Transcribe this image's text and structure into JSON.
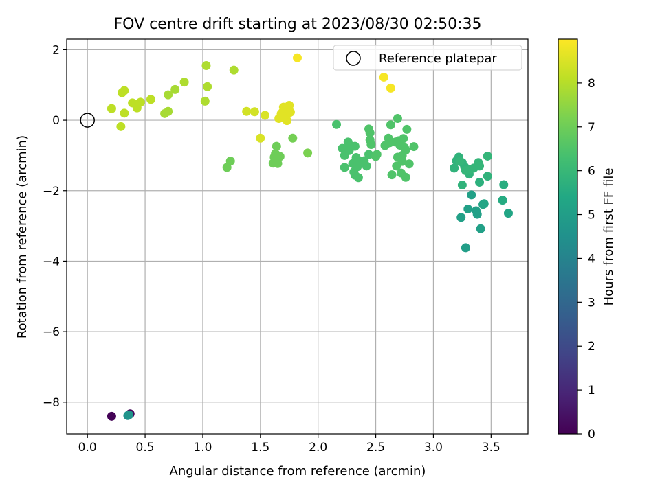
{
  "chart_data": {
    "type": "scatter",
    "title": "FOV centre drift starting at 2023/08/30 02:50:35",
    "xlabel": "Angular distance from reference (arcmin)",
    "ylabel": "Rotation from reference (arcmin)",
    "xlim": [
      -0.18,
      3.82
    ],
    "ylim": [
      -8.9,
      2.3
    ],
    "xticks": [
      0.0,
      0.5,
      1.0,
      1.5,
      2.0,
      2.5,
      3.0,
      3.5
    ],
    "xtick_labels": [
      "0.0",
      "0.5",
      "1.0",
      "1.5",
      "2.0",
      "2.5",
      "3.0",
      "3.5"
    ],
    "yticks": [
      2,
      0,
      -2,
      -4,
      -6,
      -8
    ],
    "ytick_labels": [
      "2",
      "0",
      "−2",
      "−4",
      "−6",
      "−8"
    ],
    "grid": true,
    "legend": {
      "position": "top-right",
      "entries": [
        "Reference platepar"
      ]
    },
    "reference_point": {
      "x": 0,
      "y": 0
    },
    "colorbar": {
      "label": "Hours from first FF file",
      "colormap": "viridis",
      "range": [
        0,
        9.0
      ],
      "ticks": [
        0,
        1,
        2,
        3,
        4,
        5,
        6,
        7,
        8
      ],
      "tick_labels": [
        "0",
        "1",
        "2",
        "3",
        "4",
        "5",
        "6",
        "7",
        "8"
      ]
    },
    "points": [
      {
        "x": 0.21,
        "y": -8.4,
        "h": 0.05
      },
      {
        "x": 0.37,
        "y": -8.33,
        "h": 0.15
      },
      {
        "x": 0.35,
        "y": -8.38,
        "h": 4.4
      },
      {
        "x": 0.36,
        "y": -8.36,
        "h": 4.6
      },
      {
        "x": 3.28,
        "y": -3.62,
        "h": 5.0
      },
      {
        "x": 3.24,
        "y": -2.76,
        "h": 5.1
      },
      {
        "x": 3.3,
        "y": -2.52,
        "h": 5.1
      },
      {
        "x": 3.33,
        "y": -2.12,
        "h": 5.1
      },
      {
        "x": 3.37,
        "y": -2.57,
        "h": 5.1
      },
      {
        "x": 3.38,
        "y": -2.67,
        "h": 5.1
      },
      {
        "x": 3.41,
        "y": -3.08,
        "h": 5.1
      },
      {
        "x": 3.43,
        "y": -2.39,
        "h": 5.2
      },
      {
        "x": 3.44,
        "y": -2.37,
        "h": 5.3
      },
      {
        "x": 3.65,
        "y": -2.64,
        "h": 5.3
      },
      {
        "x": 3.6,
        "y": -2.27,
        "h": 5.5
      },
      {
        "x": 3.61,
        "y": -1.83,
        "h": 5.6
      },
      {
        "x": 3.4,
        "y": -1.76,
        "h": 5.7
      },
      {
        "x": 3.25,
        "y": -1.84,
        "h": 5.8
      },
      {
        "x": 3.47,
        "y": -1.59,
        "h": 5.8
      },
      {
        "x": 3.31,
        "y": -1.53,
        "h": 5.8
      },
      {
        "x": 3.18,
        "y": -1.36,
        "h": 5.8
      },
      {
        "x": 3.2,
        "y": -1.15,
        "h": 5.8
      },
      {
        "x": 3.22,
        "y": -1.05,
        "h": 5.8
      },
      {
        "x": 3.25,
        "y": -1.2,
        "h": 5.8
      },
      {
        "x": 3.27,
        "y": -1.32,
        "h": 5.8
      },
      {
        "x": 3.28,
        "y": -1.43,
        "h": 5.9
      },
      {
        "x": 3.32,
        "y": -1.4,
        "h": 5.9
      },
      {
        "x": 3.35,
        "y": -1.36,
        "h": 5.9
      },
      {
        "x": 3.39,
        "y": -1.2,
        "h": 5.9
      },
      {
        "x": 3.4,
        "y": -1.3,
        "h": 5.9
      },
      {
        "x": 3.47,
        "y": -1.02,
        "h": 5.9
      },
      {
        "x": 3.23,
        "y": -1.17,
        "h": 5.9
      },
      {
        "x": 2.16,
        "y": -0.12,
        "h": 6.4
      },
      {
        "x": 2.21,
        "y": -0.8,
        "h": 6.4
      },
      {
        "x": 2.23,
        "y": -1.0,
        "h": 6.4
      },
      {
        "x": 2.23,
        "y": -1.34,
        "h": 6.4
      },
      {
        "x": 2.26,
        "y": -0.62,
        "h": 6.4
      },
      {
        "x": 2.27,
        "y": -0.86,
        "h": 6.4
      },
      {
        "x": 2.28,
        "y": -0.73,
        "h": 6.4
      },
      {
        "x": 2.3,
        "y": -1.23,
        "h": 6.4
      },
      {
        "x": 2.31,
        "y": -1.47,
        "h": 6.4
      },
      {
        "x": 2.32,
        "y": -1.56,
        "h": 6.4
      },
      {
        "x": 2.32,
        "y": -0.74,
        "h": 6.4
      },
      {
        "x": 2.33,
        "y": -1.06,
        "h": 6.4
      },
      {
        "x": 2.34,
        "y": -1.32,
        "h": 6.4
      },
      {
        "x": 2.35,
        "y": -1.63,
        "h": 6.4
      },
      {
        "x": 2.36,
        "y": -1.16,
        "h": 6.4
      },
      {
        "x": 2.4,
        "y": -1.15,
        "h": 6.4
      },
      {
        "x": 2.42,
        "y": -1.3,
        "h": 6.4
      },
      {
        "x": 2.44,
        "y": -0.97,
        "h": 6.4
      },
      {
        "x": 2.44,
        "y": -0.25,
        "h": 6.5
      },
      {
        "x": 2.45,
        "y": -0.36,
        "h": 6.5
      },
      {
        "x": 2.45,
        "y": -0.56,
        "h": 6.5
      },
      {
        "x": 2.46,
        "y": -0.69,
        "h": 6.5
      },
      {
        "x": 2.5,
        "y": -1.03,
        "h": 6.5
      },
      {
        "x": 2.51,
        "y": -0.97,
        "h": 6.5
      },
      {
        "x": 2.58,
        "y": -0.72,
        "h": 6.5
      },
      {
        "x": 2.61,
        "y": -0.51,
        "h": 6.5
      },
      {
        "x": 2.62,
        "y": -0.64,
        "h": 6.5
      },
      {
        "x": 2.63,
        "y": -0.13,
        "h": 6.5
      },
      {
        "x": 2.64,
        "y": -1.55,
        "h": 6.5
      },
      {
        "x": 2.67,
        "y": -0.62,
        "h": 6.5
      },
      {
        "x": 2.68,
        "y": -1.3,
        "h": 6.5
      },
      {
        "x": 2.69,
        "y": 0.05,
        "h": 6.5
      },
      {
        "x": 2.69,
        "y": -1.05,
        "h": 6.5
      },
      {
        "x": 2.7,
        "y": -0.58,
        "h": 6.5
      },
      {
        "x": 2.71,
        "y": -0.71,
        "h": 6.5
      },
      {
        "x": 2.72,
        "y": -1.5,
        "h": 6.5
      },
      {
        "x": 2.73,
        "y": -1.17,
        "h": 6.5
      },
      {
        "x": 2.74,
        "y": -0.52,
        "h": 6.5
      },
      {
        "x": 2.75,
        "y": -0.78,
        "h": 6.5
      },
      {
        "x": 2.76,
        "y": -0.85,
        "h": 6.5
      },
      {
        "x": 2.76,
        "y": -1.62,
        "h": 6.5
      },
      {
        "x": 2.77,
        "y": -0.26,
        "h": 6.5
      },
      {
        "x": 2.79,
        "y": -1.24,
        "h": 6.5
      },
      {
        "x": 2.83,
        "y": -0.75,
        "h": 6.5
      },
      {
        "x": 2.73,
        "y": -1.0,
        "h": 6.5
      },
      {
        "x": 1.21,
        "y": -1.34,
        "h": 7.0
      },
      {
        "x": 1.24,
        "y": -1.16,
        "h": 7.0
      },
      {
        "x": 1.61,
        "y": -1.22,
        "h": 7.0
      },
      {
        "x": 1.62,
        "y": -1.05,
        "h": 7.0
      },
      {
        "x": 1.63,
        "y": -0.95,
        "h": 7.0
      },
      {
        "x": 1.64,
        "y": -0.74,
        "h": 7.0
      },
      {
        "x": 1.65,
        "y": -1.23,
        "h": 7.0
      },
      {
        "x": 1.67,
        "y": -1.03,
        "h": 7.0
      },
      {
        "x": 1.78,
        "y": -0.51,
        "h": 7.1
      },
      {
        "x": 1.91,
        "y": -0.93,
        "h": 7.2
      },
      {
        "x": 0.67,
        "y": 0.19,
        "h": 7.8
      },
      {
        "x": 0.7,
        "y": 0.25,
        "h": 7.8
      },
      {
        "x": 0.7,
        "y": 0.72,
        "h": 7.8
      },
      {
        "x": 0.76,
        "y": 0.87,
        "h": 7.8
      },
      {
        "x": 0.84,
        "y": 1.08,
        "h": 7.9
      },
      {
        "x": 1.02,
        "y": 0.54,
        "h": 7.9
      },
      {
        "x": 1.04,
        "y": 0.95,
        "h": 7.9
      },
      {
        "x": 1.03,
        "y": 1.55,
        "h": 7.9
      },
      {
        "x": 1.27,
        "y": 1.42,
        "h": 7.9
      },
      {
        "x": 0.3,
        "y": 0.78,
        "h": 8.1
      },
      {
        "x": 0.32,
        "y": 0.84,
        "h": 8.1
      },
      {
        "x": 0.21,
        "y": 0.33,
        "h": 8.1
      },
      {
        "x": 0.29,
        "y": -0.18,
        "h": 8.1
      },
      {
        "x": 0.32,
        "y": 0.2,
        "h": 8.1
      },
      {
        "x": 0.39,
        "y": 0.49,
        "h": 8.1
      },
      {
        "x": 0.42,
        "y": 0.45,
        "h": 8.1
      },
      {
        "x": 0.43,
        "y": 0.35,
        "h": 8.1
      },
      {
        "x": 0.46,
        "y": 0.51,
        "h": 8.1
      },
      {
        "x": 0.55,
        "y": 0.59,
        "h": 8.1
      },
      {
        "x": 1.38,
        "y": 0.25,
        "h": 8.4
      },
      {
        "x": 1.45,
        "y": 0.24,
        "h": 8.4
      },
      {
        "x": 1.5,
        "y": -0.51,
        "h": 8.5
      },
      {
        "x": 1.54,
        "y": 0.14,
        "h": 8.5
      },
      {
        "x": 1.66,
        "y": 0.05,
        "h": 8.6
      },
      {
        "x": 1.68,
        "y": 0.18,
        "h": 8.6
      },
      {
        "x": 1.69,
        "y": 0.22,
        "h": 8.6
      },
      {
        "x": 1.7,
        "y": 0.37,
        "h": 8.6
      },
      {
        "x": 1.71,
        "y": 0.26,
        "h": 8.6
      },
      {
        "x": 1.72,
        "y": 0.03,
        "h": 8.6
      },
      {
        "x": 1.73,
        "y": -0.01,
        "h": 8.6
      },
      {
        "x": 1.74,
        "y": 0.18,
        "h": 8.6
      },
      {
        "x": 1.75,
        "y": 0.42,
        "h": 8.6
      },
      {
        "x": 1.76,
        "y": 0.23,
        "h": 8.6
      },
      {
        "x": 1.69,
        "y": 0.08,
        "h": 8.6
      },
      {
        "x": 1.82,
        "y": 1.77,
        "h": 8.9
      },
      {
        "x": 2.57,
        "y": 1.22,
        "h": 8.9
      },
      {
        "x": 2.63,
        "y": 0.91,
        "h": 8.9
      }
    ]
  }
}
